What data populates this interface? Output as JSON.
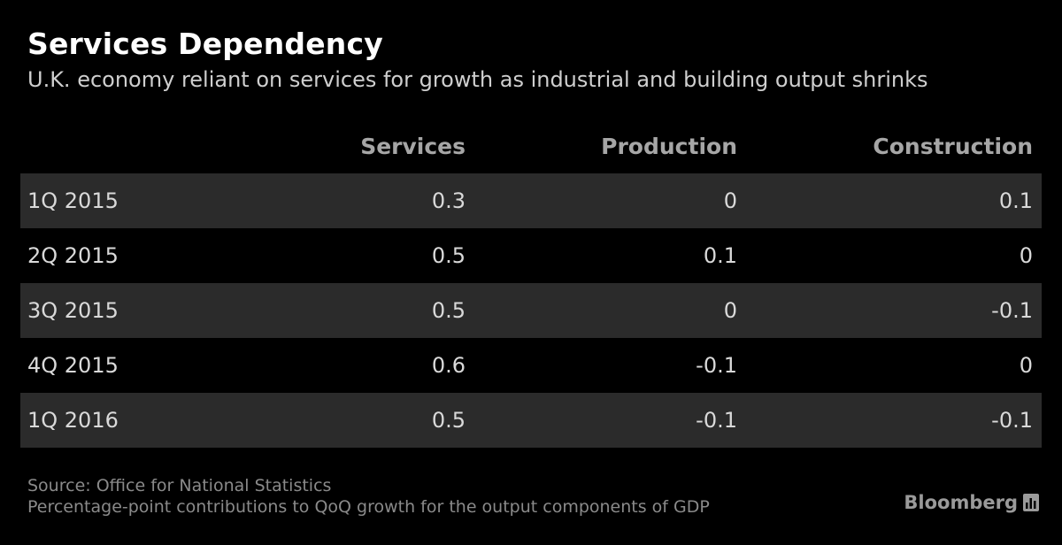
{
  "title": "Services Dependency",
  "subtitle": "U.K. economy reliant on services for growth as industrial and building output shrinks",
  "chart_data": {
    "type": "table",
    "title": "Services Dependency",
    "subtitle": "U.K. economy reliant on services for growth as industrial and building output shrinks",
    "columns": [
      "Services",
      "Production",
      "Construction"
    ],
    "rows": [
      {
        "label": "1Q 2015",
        "values": [
          "0.3",
          "0",
          "0.1"
        ]
      },
      {
        "label": "2Q 2015",
        "values": [
          "0.5",
          "0.1",
          "0"
        ]
      },
      {
        "label": "3Q 2015",
        "values": [
          "0.5",
          "0",
          "-0.1"
        ]
      },
      {
        "label": "4Q 2015",
        "values": [
          "0.6",
          "-0.1",
          "0"
        ]
      },
      {
        "label": "1Q 2016",
        "values": [
          "0.5",
          "-0.1",
          "-0.1"
        ]
      }
    ]
  },
  "footer": {
    "source": "Source: Office for National Statistics",
    "note": "Percentage-point contributions to QoQ growth for the output components of GDP"
  },
  "brand": {
    "name": "Bloomberg",
    "icon": "bloomberg-chart-icon"
  },
  "colors": {
    "background": "#000000",
    "shaded_row": "#2b2b2b",
    "header_text": "#a6a6a6",
    "cell_text": "#d9d9d9",
    "footer_text": "#8a8a8a"
  }
}
